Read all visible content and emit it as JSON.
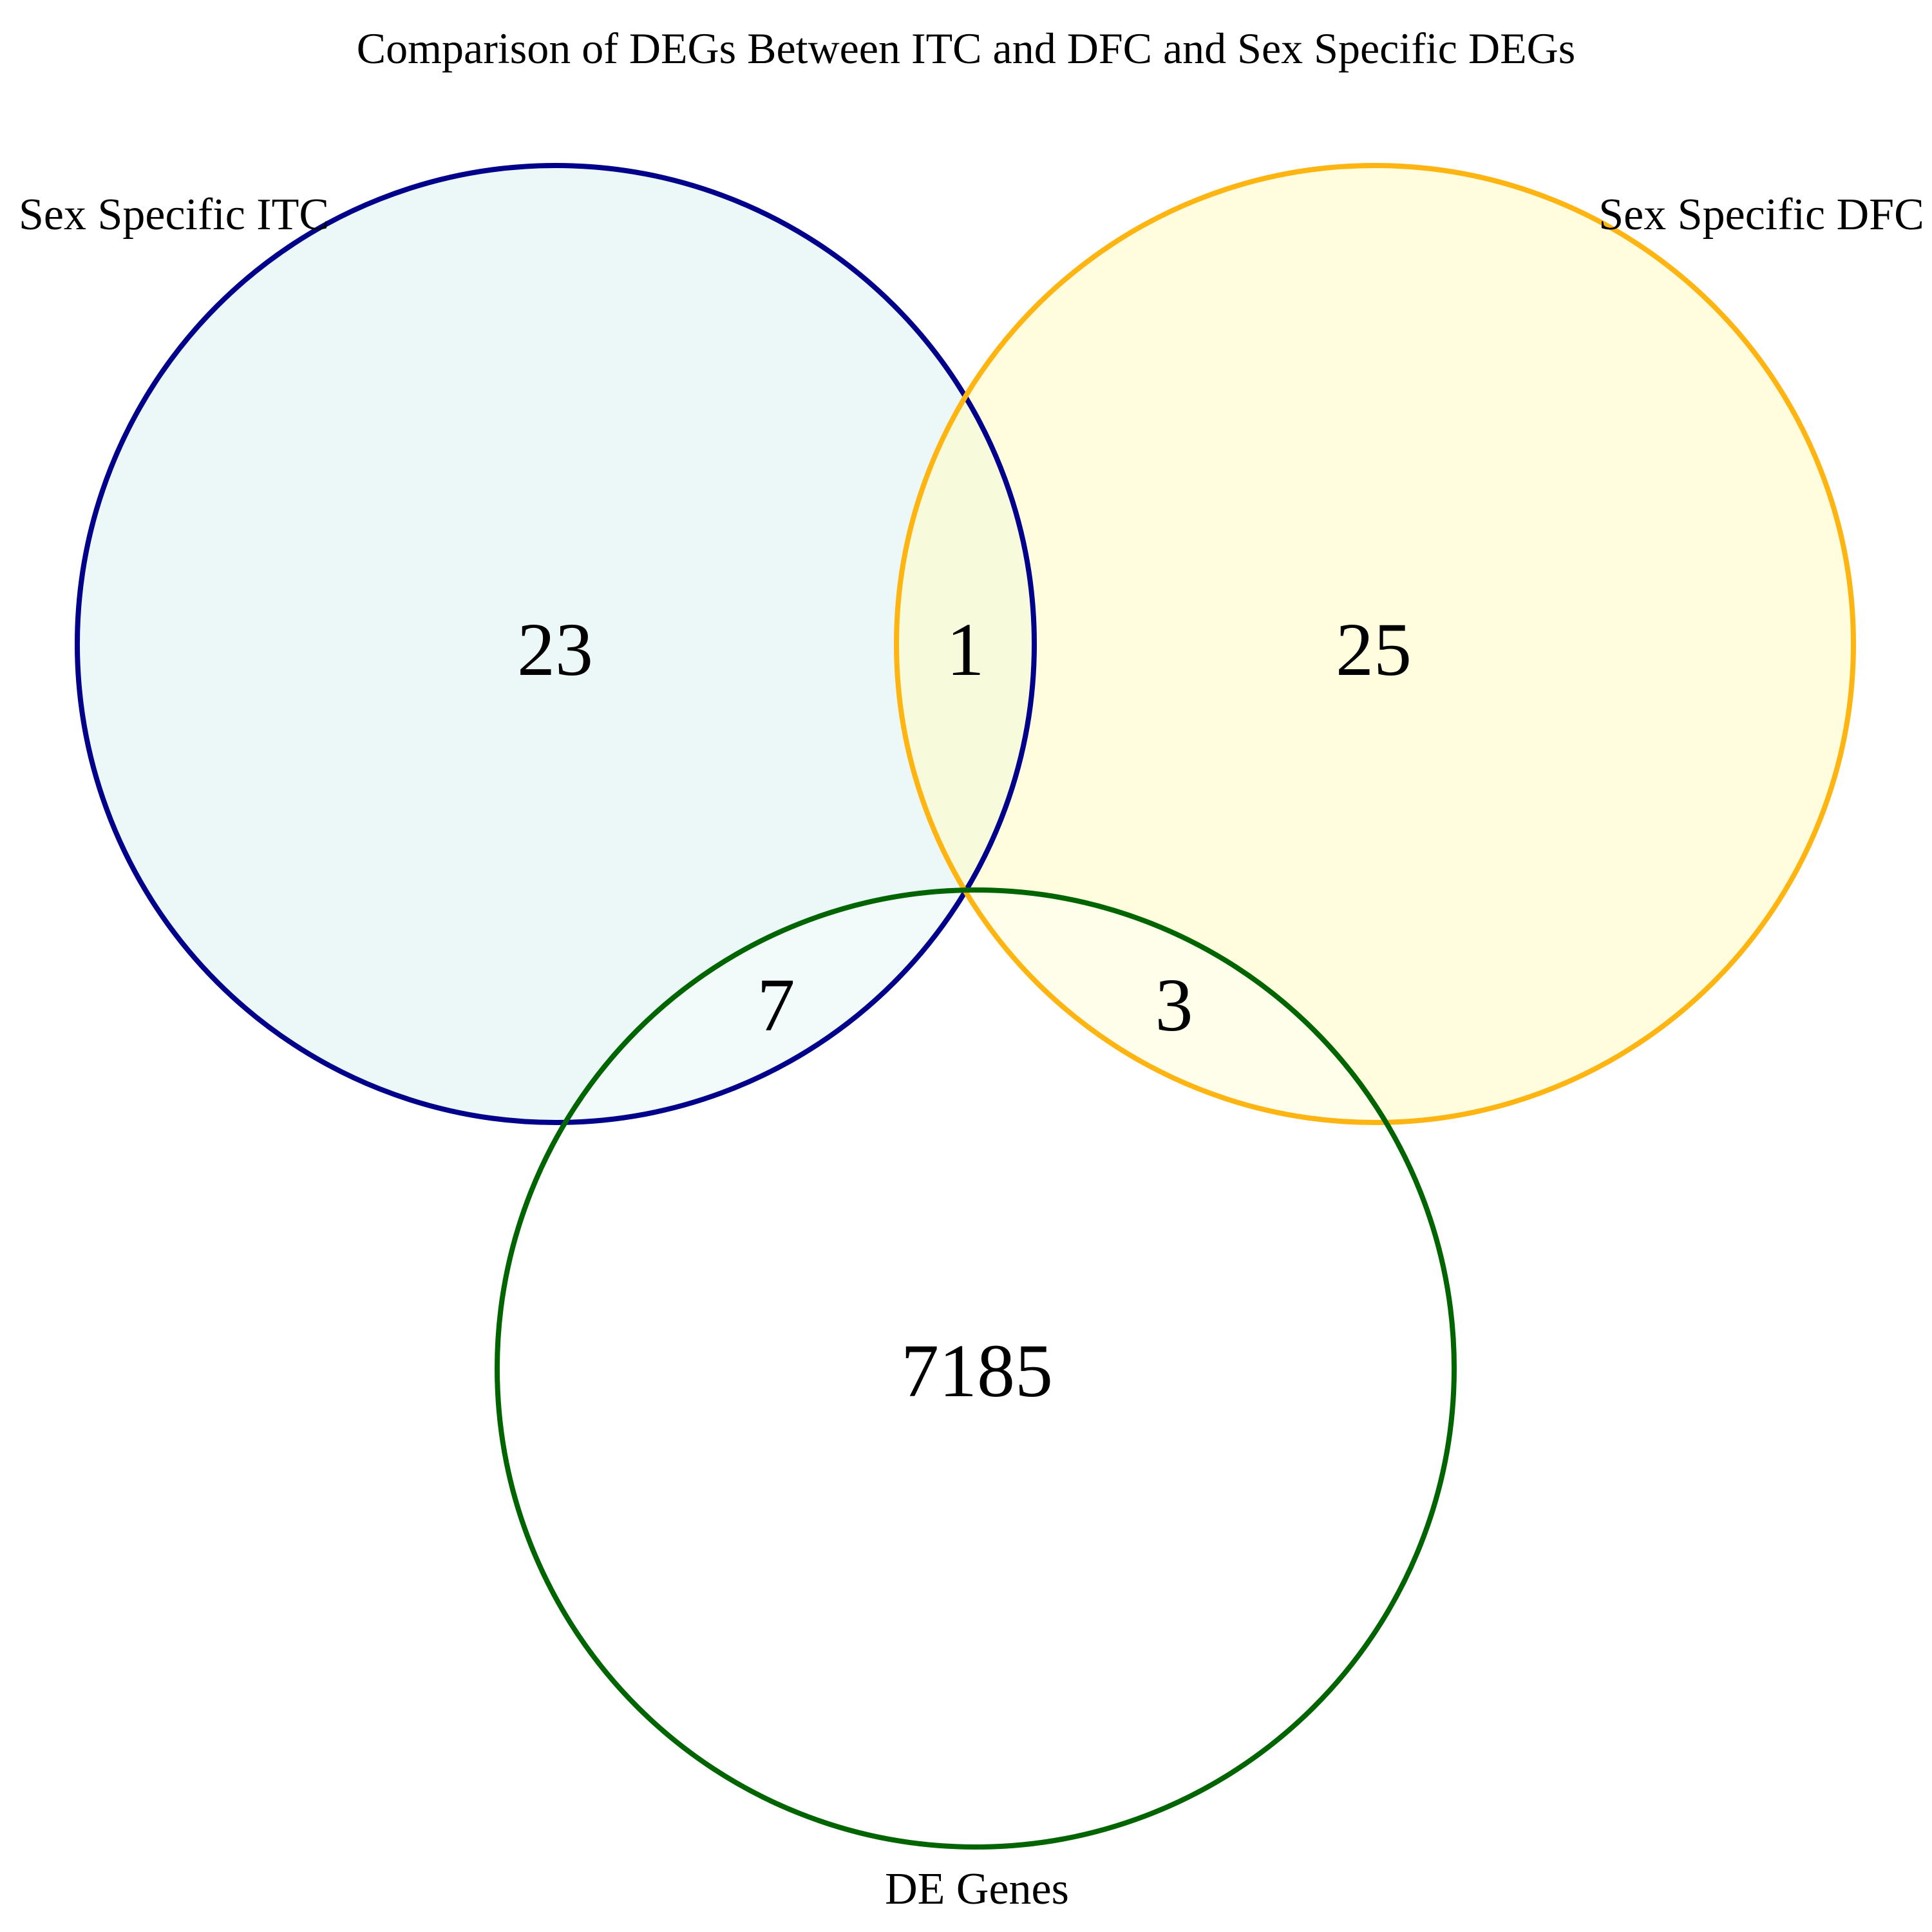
{
  "title": "Comparison of DEGs Between ITC and DFC and Sex Specific DEGs",
  "sets": [
    {
      "id": "itc",
      "label": "Sex Specific ITC",
      "stroke": "#00008B",
      "fill": "#E0F2F1"
    },
    {
      "id": "dfc",
      "label": "Sex Specific DFC",
      "stroke": "#FFB511",
      "fill": "#FFFCC8"
    },
    {
      "id": "de",
      "label": "DE Genes",
      "stroke": "#006400",
      "fill": "#FFFFFF"
    }
  ],
  "chart_data": {
    "type": "venn",
    "title": "Comparison of DEGs Between ITC and DFC and Sex Specific DEGs",
    "sets": [
      "Sex Specific ITC",
      "Sex Specific DFC",
      "DE Genes"
    ],
    "regions": [
      {
        "sets": [
          "Sex Specific ITC"
        ],
        "count": "23"
      },
      {
        "sets": [
          "Sex Specific ITC",
          "Sex Specific DFC"
        ],
        "count": "1"
      },
      {
        "sets": [
          "Sex Specific DFC"
        ],
        "count": "25"
      },
      {
        "sets": [
          "Sex Specific ITC",
          "DE Genes"
        ],
        "count": "7"
      },
      {
        "sets": [
          "Sex Specific DFC",
          "DE Genes"
        ],
        "count": "3"
      },
      {
        "sets": [
          "DE Genes"
        ],
        "count": "7185"
      }
    ]
  }
}
